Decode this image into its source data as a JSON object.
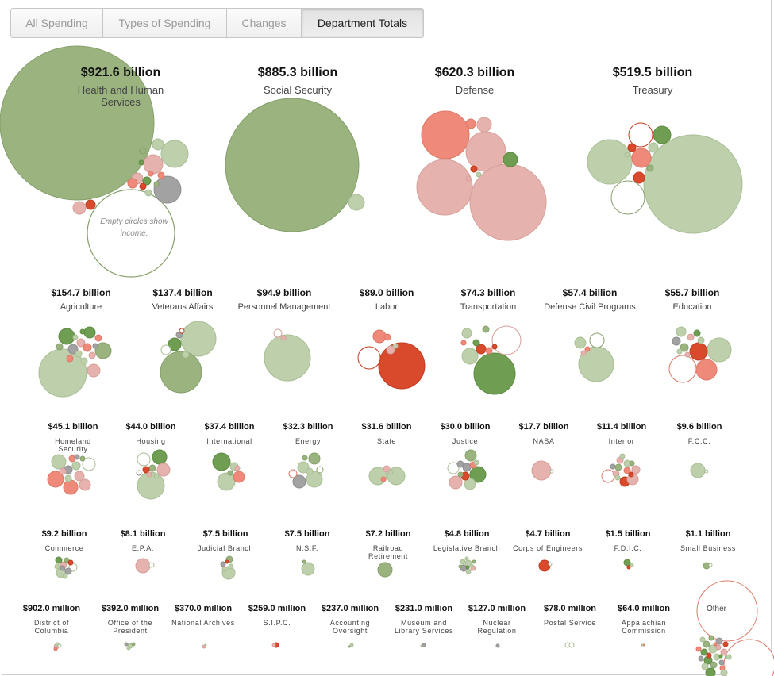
{
  "tabs": [
    {
      "label": "All Spending"
    },
    {
      "label": "Types of Spending"
    },
    {
      "label": "Changes"
    },
    {
      "label": "Department Totals",
      "active": true
    }
  ],
  "colors": {
    "strong_green": "#6f9e52",
    "green": "#9ab37f",
    "light_green": "#bdd0ab",
    "light_red": "#e5b2ae",
    "red": "#ef8a7b",
    "strong_red": "#d84a2b",
    "gray": "#a2a2a2",
    "income": "#ffffff"
  },
  "annotations": {
    "income_note": "Empty circles show income.",
    "other_label": "Other"
  },
  "chart_data": {
    "type": "bubble",
    "series": [
      {
        "name": "Health and Human Services",
        "amount_label": "$921.6 billion",
        "value_billions": 921.6
      },
      {
        "name": "Social Security",
        "amount_label": "$885.3 billion",
        "value_billions": 885.3
      },
      {
        "name": "Defense",
        "amount_label": "$620.3 billion",
        "value_billions": 620.3
      },
      {
        "name": "Treasury",
        "amount_label": "$519.5 billion",
        "value_billions": 519.5
      },
      {
        "name": "Agriculture",
        "amount_label": "$154.7 billion",
        "value_billions": 154.7
      },
      {
        "name": "Veterans Affairs",
        "amount_label": "$137.4 billion",
        "value_billions": 137.4
      },
      {
        "name": "Personnel Management",
        "amount_label": "$94.9 billion",
        "value_billions": 94.9
      },
      {
        "name": "Labor",
        "amount_label": "$89.0 billion",
        "value_billions": 89.0
      },
      {
        "name": "Transportation",
        "amount_label": "$74.3 billion",
        "value_billions": 74.3
      },
      {
        "name": "Defense Civil Programs",
        "amount_label": "$57.4 billion",
        "value_billions": 57.4
      },
      {
        "name": "Education",
        "amount_label": "$55.7 billion",
        "value_billions": 55.7
      },
      {
        "name": "Homeland Security",
        "amount_label": "$45.1 billion",
        "value_billions": 45.1
      },
      {
        "name": "Housing",
        "amount_label": "$44.0 billion",
        "value_billions": 44.0
      },
      {
        "name": "International",
        "amount_label": "$37.4 billion",
        "value_billions": 37.4
      },
      {
        "name": "Energy",
        "amount_label": "$32.3 billion",
        "value_billions": 32.3
      },
      {
        "name": "State",
        "amount_label": "$31.6 billion",
        "value_billions": 31.6
      },
      {
        "name": "Justice",
        "amount_label": "$30.0 billion",
        "value_billions": 30.0
      },
      {
        "name": "NASA",
        "amount_label": "$17.7 billion",
        "value_billions": 17.7
      },
      {
        "name": "Interior",
        "amount_label": "$11.4 billion",
        "value_billions": 11.4
      },
      {
        "name": "F.C.C.",
        "amount_label": "$9.6 billion",
        "value_billions": 9.6
      },
      {
        "name": "Commerce",
        "amount_label": "$9.2 billion",
        "value_billions": 9.2
      },
      {
        "name": "E.P.A.",
        "amount_label": "$8.1 billion",
        "value_billions": 8.1
      },
      {
        "name": "Judicial Branch",
        "amount_label": "$7.5 billion",
        "value_billions": 7.5
      },
      {
        "name": "N.S.F.",
        "amount_label": "$7.5 billion",
        "value_billions": 7.5
      },
      {
        "name": "Railroad Retirement",
        "amount_label": "$7.2 billion",
        "value_billions": 7.2
      },
      {
        "name": "Legislative Branch",
        "amount_label": "$4.8 billion",
        "value_billions": 4.8
      },
      {
        "name": "Corps of Engineers",
        "amount_label": "$4.7 billion",
        "value_billions": 4.7
      },
      {
        "name": "F.D.I.C.",
        "amount_label": "$1.5 billion",
        "value_billions": 1.5
      },
      {
        "name": "Small Business",
        "amount_label": "$1.1 billion",
        "value_billions": 1.1
      },
      {
        "name": "District of Columbia",
        "amount_label": "$902.0 million",
        "value_billions": 0.902
      },
      {
        "name": "Office of the President",
        "amount_label": "$392.0 million",
        "value_billions": 0.392
      },
      {
        "name": "National Archives",
        "amount_label": "$370.0 million",
        "value_billions": 0.37
      },
      {
        "name": "S.I.P.C.",
        "amount_label": "$259.0 million",
        "value_billions": 0.259
      },
      {
        "name": "Accounting Oversight",
        "amount_label": "$237.0 million",
        "value_billions": 0.237
      },
      {
        "name": "Museum and Library Services",
        "amount_label": "$231.0 million",
        "value_billions": 0.231
      },
      {
        "name": "Nuclear Regulation",
        "amount_label": "$127.0 million",
        "value_billions": 0.127
      },
      {
        "name": "Postal Service",
        "amount_label": "$78.0 million",
        "value_billions": 0.078
      },
      {
        "name": "Appalachian Commission",
        "amount_label": "$64.0 million",
        "value_billions": 0.064
      }
    ]
  }
}
